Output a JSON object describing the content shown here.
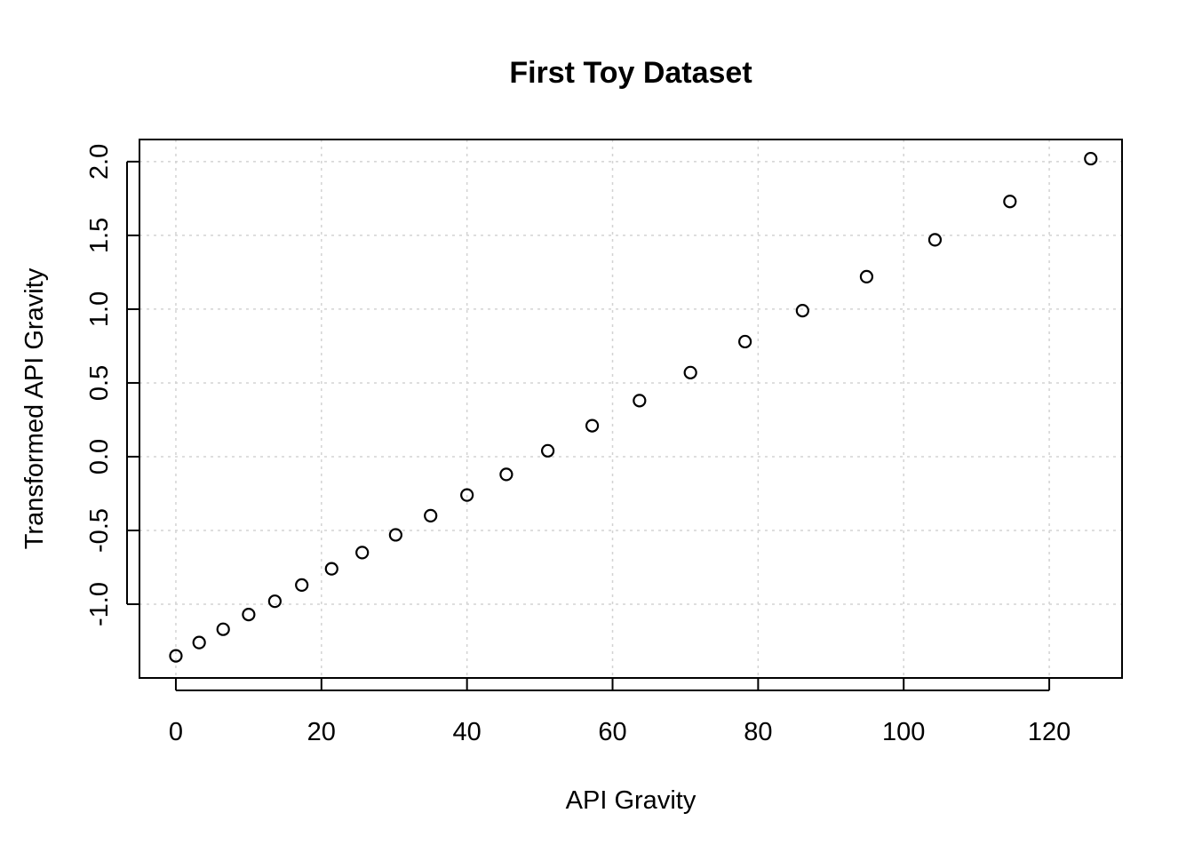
{
  "chart_data": {
    "type": "scatter",
    "title": "First Toy Dataset",
    "xlabel": "API Gravity",
    "ylabel": "Transformed API Gravity",
    "xlim": [
      -5,
      130
    ],
    "ylim": [
      -1.5,
      2.15
    ],
    "x_ticks": [
      0,
      20,
      40,
      60,
      80,
      100,
      120
    ],
    "x_tick_labels": [
      "0",
      "20",
      "40",
      "60",
      "80",
      "100",
      "120"
    ],
    "y_ticks": [
      -1.0,
      -0.5,
      0.0,
      0.5,
      1.0,
      1.5,
      2.0
    ],
    "y_tick_labels": [
      "-1.0",
      "-0.5",
      "0.0",
      "0.5",
      "1.0",
      "1.5",
      "2.0"
    ],
    "grid": true,
    "marker": "open-circle",
    "series": [
      {
        "x": [
          0.0,
          3.2,
          6.5,
          10.0,
          13.6,
          17.3,
          21.4,
          25.6,
          30.2,
          35.0,
          40.0,
          45.4,
          51.1,
          57.2,
          63.7,
          70.7,
          78.2,
          86.1,
          94.9,
          104.3,
          114.6,
          125.7
        ],
        "values": [
          -1.35,
          -1.26,
          -1.17,
          -1.07,
          -0.98,
          -0.87,
          -0.76,
          -0.65,
          -0.53,
          -0.4,
          -0.26,
          -0.12,
          0.04,
          0.21,
          0.38,
          0.57,
          0.78,
          0.99,
          1.22,
          1.47,
          1.73,
          2.02
        ]
      }
    ]
  }
}
